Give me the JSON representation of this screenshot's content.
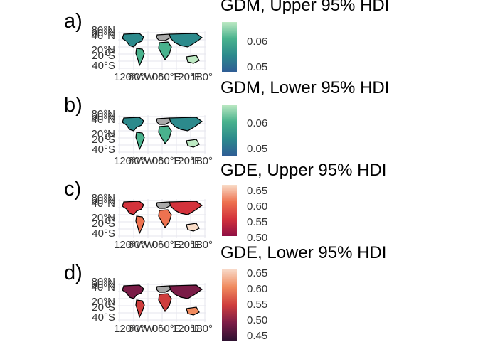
{
  "panels": [
    {
      "letter": "a)",
      "title": "GDM, Upper 95% HDI",
      "legend_ticks": [
        "0.06",
        "0.05"
      ],
      "palette": [
        "#2f5d95",
        "#2c8a8c",
        "#49b28d",
        "#bde9c3"
      ],
      "lat_labels": [
        "80°N",
        "60°N",
        "40°N",
        "20°N",
        "0°",
        "20°S",
        "40°S"
      ],
      "lon_labels": [
        "120°W",
        "60°W",
        "0°",
        "60°E",
        "120°E",
        "180°"
      ]
    },
    {
      "letter": "b)",
      "title": "GDM, Lower 95% HDI",
      "legend_ticks": [
        "0.06",
        "0.05"
      ],
      "palette": [
        "#2f5d95",
        "#2c8a8c",
        "#49b28d",
        "#bde9c3"
      ],
      "lat_labels": [
        "80°N",
        "60°N",
        "40°N",
        "20°N",
        "0°",
        "20°S",
        "40°S"
      ],
      "lon_labels": [
        "120°W",
        "60°W",
        "0°",
        "60°E",
        "120°E",
        "180°"
      ]
    },
    {
      "letter": "c)",
      "title": "GDE, Upper 95% HDI",
      "legend_ticks": [
        "0.65",
        "0.60",
        "0.55",
        "0.50"
      ],
      "palette": [
        "#8e0f44",
        "#d3323c",
        "#ee7250",
        "#f9dcc8"
      ],
      "lat_labels": [
        "80°N",
        "60°N",
        "40°N",
        "20°N",
        "0°",
        "20°S",
        "40°S"
      ],
      "lon_labels": [
        "120°W",
        "60°W",
        "0°",
        "60°E",
        "120°E",
        "180°"
      ]
    },
    {
      "letter": "d)",
      "title": "GDE, Lower 95% HDI",
      "legend_ticks": [
        "0.65",
        "0.60",
        "0.55",
        "0.50",
        "0.45"
      ],
      "palette": [
        "#2b1130",
        "#7a1c47",
        "#cf3d3d",
        "#f08a5e",
        "#f8dccc"
      ],
      "lat_labels": [
        "80°N",
        "60°N",
        "40°N",
        "20°N",
        "0°",
        "20°S",
        "40°S"
      ],
      "lon_labels": [
        "120°W",
        "60°W",
        "0°",
        "60°E",
        "120°E",
        "180°"
      ]
    }
  ]
}
